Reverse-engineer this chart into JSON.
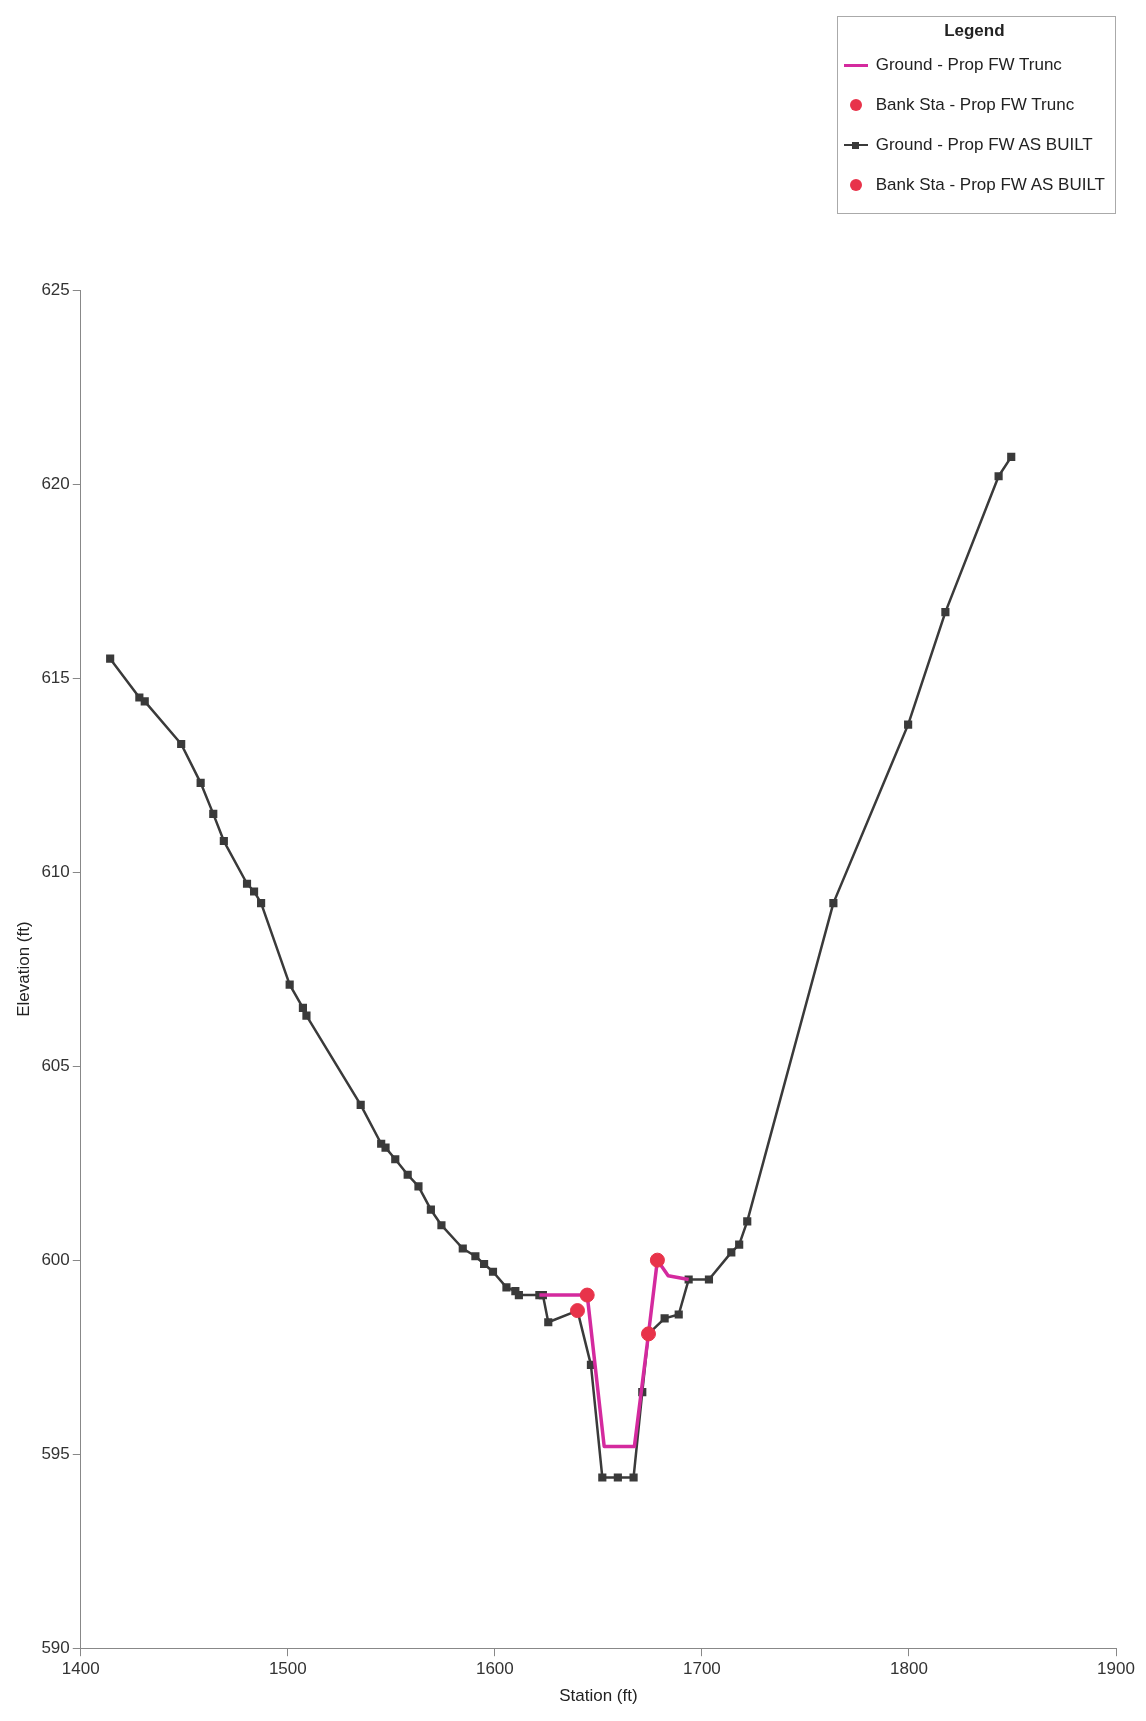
{
  "chart_data": {
    "type": "line",
    "xlabel": "Station (ft)",
    "ylabel": "Elevation (ft)",
    "legend_title": "Legend",
    "legend": "top right",
    "grid": false,
    "xlim": [
      1400,
      1900
    ],
    "xticks": [
      1400,
      1500,
      1600,
      1700,
      1800,
      1900
    ],
    "ylim": [
      590,
      625
    ],
    "yticks": [
      590,
      595,
      600,
      605,
      610,
      615,
      620,
      625
    ],
    "series": [
      {
        "name": "Ground - Prop FW Trunc",
        "type": "line",
        "color": "#d42a9e",
        "marker": "none",
        "x": [
          1621.5,
          1644.6,
          1652.8,
          1667.4,
          1674.2,
          1678.5,
          1683.7,
          1693.6
        ],
        "values": [
          599.1,
          599.1,
          595.2,
          595.2,
          598.1,
          600.0,
          599.6,
          599.5
        ]
      },
      {
        "name": "Bank Sta - Prop FW Trunc",
        "type": "scatter",
        "color": "#e8334a",
        "marker": "circle",
        "x": [
          1644.6,
          1678.5
        ],
        "values": [
          599.1,
          600.0
        ]
      },
      {
        "name": "Ground - Prop FW AS BUILT",
        "type": "line",
        "color": "#3a3a3a",
        "marker": "square",
        "x": [
          1414.2,
          1428.3,
          1430.9,
          1448.5,
          1457.9,
          1464.0,
          1469.1,
          1480.3,
          1483.7,
          1487.1,
          1500.9,
          1507.3,
          1509.0,
          1535.2,
          1545.1,
          1547.2,
          1551.9,
          1557.9,
          1563.1,
          1569.1,
          1574.2,
          1584.5,
          1590.6,
          1594.8,
          1599.1,
          1605.6,
          1609.9,
          1611.6,
          1621.5,
          1623.2,
          1625.8,
          1639.9,
          1646.4,
          1651.9,
          1659.4,
          1667.0,
          1671.2,
          1674.2,
          1682.0,
          1688.8,
          1693.6,
          1703.4,
          1714.2,
          1718.0,
          1721.9,
          1763.5,
          1799.6,
          1817.6,
          1843.3,
          1849.4
        ],
        "values": [
          615.5,
          614.5,
          614.4,
          613.3,
          612.3,
          611.5,
          610.8,
          609.7,
          609.5,
          609.2,
          607.1,
          606.5,
          606.3,
          604.0,
          603.0,
          602.9,
          602.6,
          602.2,
          601.9,
          601.3,
          600.9,
          600.3,
          600.1,
          599.9,
          599.7,
          599.3,
          599.2,
          599.1,
          599.1,
          599.1,
          598.4,
          598.7,
          597.3,
          594.4,
          594.4,
          594.4,
          596.6,
          598.1,
          598.5,
          598.6,
          599.5,
          599.5,
          600.2,
          600.4,
          601.0,
          609.2,
          613.8,
          616.7,
          620.2,
          620.7
        ]
      },
      {
        "name": "Bank Sta - Prop FW AS BUILT",
        "type": "scatter",
        "color": "#e8334a",
        "marker": "circle",
        "x": [
          1639.9,
          1674.2
        ],
        "values": [
          598.7,
          598.1
        ]
      }
    ]
  }
}
